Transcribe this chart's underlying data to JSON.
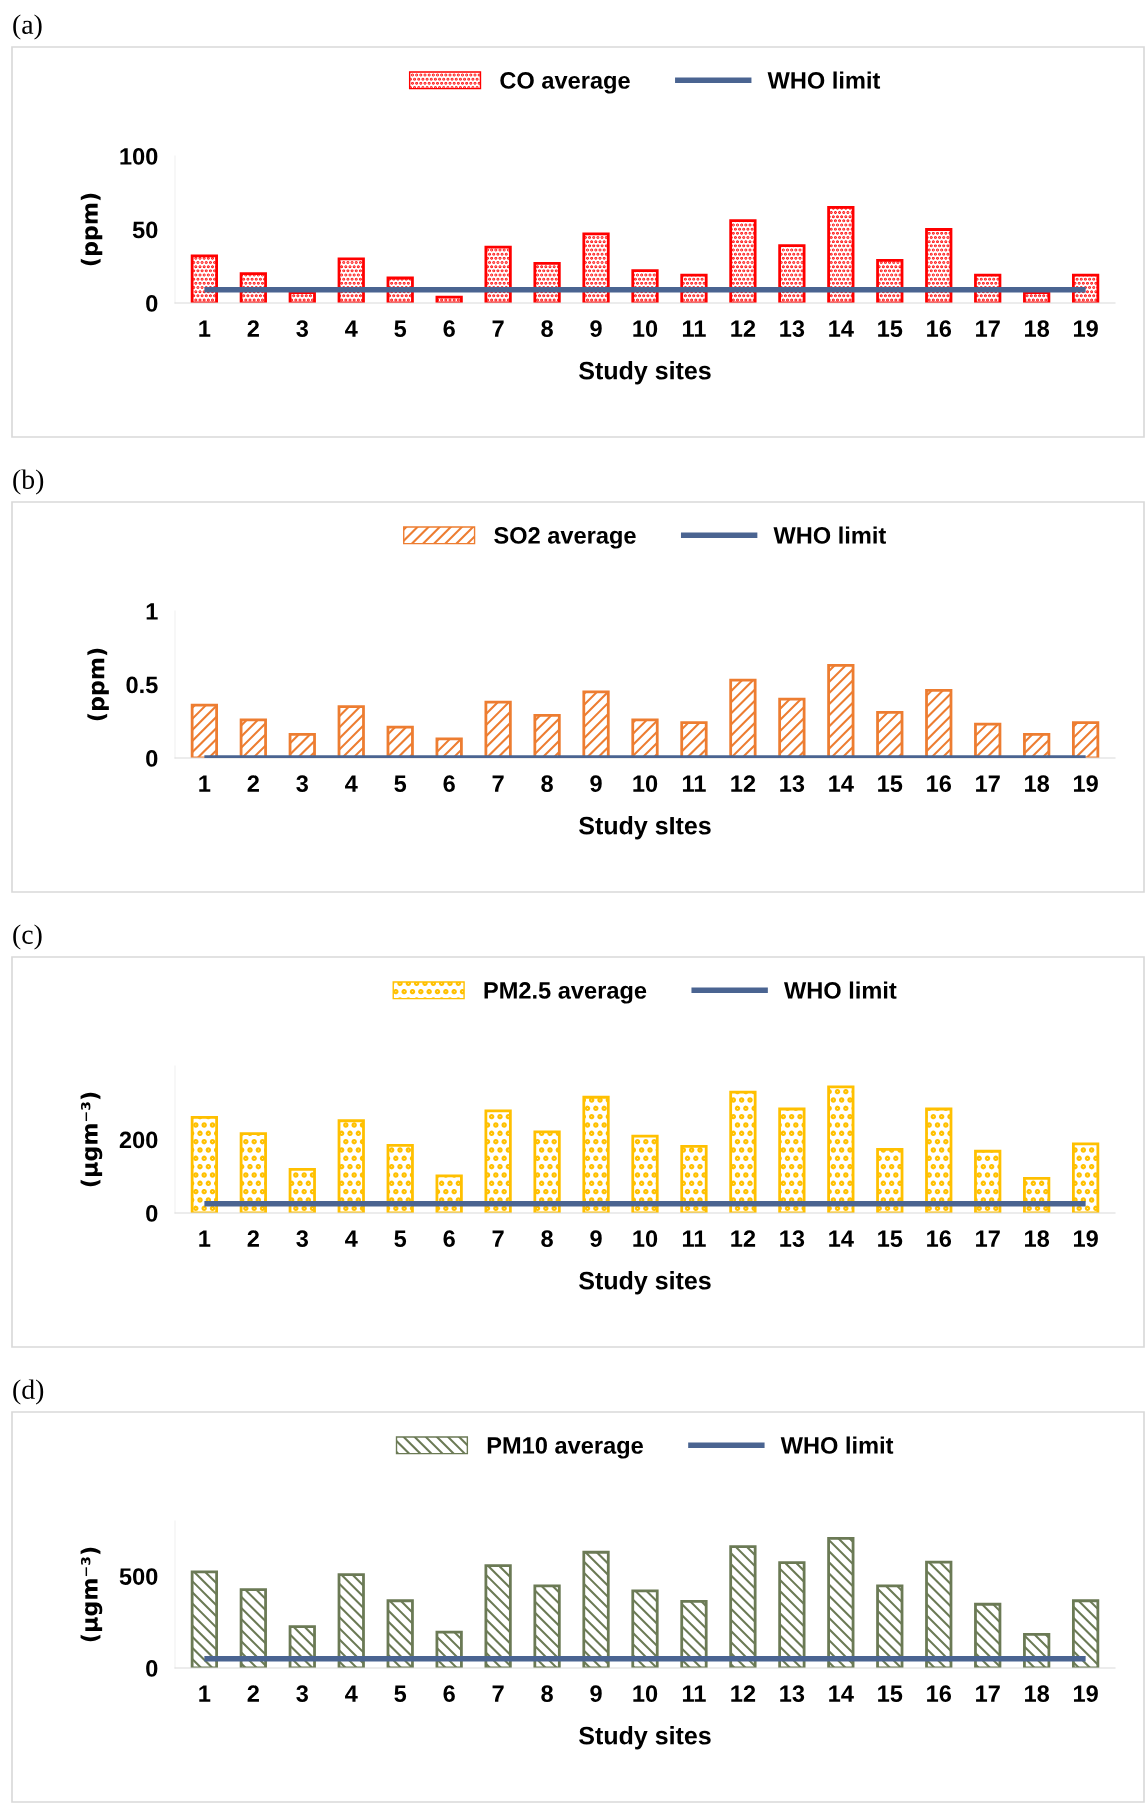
{
  "chart_data": [
    {
      "type": "bar",
      "title": "(a)",
      "xlabel": "Study sites",
      "ylabel": "(ppm)",
      "categories": [
        "1",
        "2",
        "3",
        "4",
        "5",
        "6",
        "7",
        "8",
        "9",
        "10",
        "11",
        "12",
        "13",
        "14",
        "15",
        "16",
        "17",
        "18",
        "19"
      ],
      "series": [
        {
          "name": "CO average",
          "color": "#ff0000",
          "values": [
            32,
            20,
            7,
            30,
            17,
            4,
            38,
            27,
            47,
            22,
            19,
            56,
            39,
            65,
            29,
            50,
            19,
            7,
            19
          ]
        }
      ],
      "ref_lines": [
        {
          "axis": "y",
          "value": 9,
          "label": "WHO limit",
          "color": "#4a6491"
        }
      ],
      "ylim": [
        0,
        100
      ],
      "yticks": [
        0,
        50,
        100
      ],
      "grid": false,
      "legend": "top"
    },
    {
      "type": "bar",
      "title": "(b)",
      "xlabel": "Study sItes",
      "ylabel": "(ppm)",
      "categories": [
        "1",
        "2",
        "3",
        "4",
        "5",
        "6",
        "7",
        "8",
        "9",
        "10",
        "11",
        "12",
        "13",
        "14",
        "15",
        "16",
        "17",
        "18",
        "19"
      ],
      "series": [
        {
          "name": "SO2 average",
          "color": "#ed7d31",
          "values": [
            0.36,
            0.26,
            0.16,
            0.35,
            0.21,
            0.13,
            0.38,
            0.29,
            0.45,
            0.26,
            0.24,
            0.53,
            0.4,
            0.63,
            0.31,
            0.46,
            0.23,
            0.16,
            0.24
          ]
        }
      ],
      "ref_lines": [
        {
          "axis": "y",
          "value": 0,
          "label": "WHO limit",
          "color": "#4a6491"
        }
      ],
      "ylim": [
        0,
        1
      ],
      "yticks": [
        0,
        0.5,
        1
      ],
      "grid": false,
      "legend": "top"
    },
    {
      "type": "bar",
      "title": "(c)",
      "xlabel": "Study sites",
      "ylabel": "(μgm⁻³)",
      "categories": [
        "1",
        "2",
        "3",
        "4",
        "5",
        "6",
        "7",
        "8",
        "9",
        "10",
        "11",
        "12",
        "13",
        "14",
        "15",
        "16",
        "17",
        "18",
        "19"
      ],
      "series": [
        {
          "name": "PM2.5 average",
          "color": "#ffc000",
          "values": [
            260,
            216,
            119,
            251,
            184,
            101,
            278,
            221,
            315,
            209,
            181,
            329,
            283,
            343,
            173,
            283,
            168,
            94,
            188
          ]
        }
      ],
      "ref_lines": [
        {
          "axis": "y",
          "value": 25,
          "label": "WHO limit",
          "color": "#4a6491"
        }
      ],
      "ylim": [
        0,
        400
      ],
      "yticks": [
        0,
        200
      ],
      "grid": false,
      "legend": "top"
    },
    {
      "type": "bar",
      "title": "(d)",
      "xlabel": "Study sites",
      "ylabel": "(μgm⁻³)",
      "categories": [
        "1",
        "2",
        "3",
        "4",
        "5",
        "6",
        "7",
        "8",
        "9",
        "10",
        "11",
        "12",
        "13",
        "14",
        "15",
        "16",
        "17",
        "18",
        "19"
      ],
      "series": [
        {
          "name": "PM10 average",
          "color": "#6b7a55",
          "values": [
            523,
            427,
            225,
            508,
            366,
            195,
            557,
            447,
            630,
            420,
            363,
            660,
            573,
            706,
            447,
            576,
            347,
            183,
            366
          ]
        }
      ],
      "ref_lines": [
        {
          "axis": "y",
          "value": 50,
          "label": "WHO limit",
          "color": "#4a6491"
        }
      ],
      "ylim": [
        0,
        800
      ],
      "yticks": [
        0,
        500
      ],
      "grid": false,
      "legend": "top"
    }
  ]
}
